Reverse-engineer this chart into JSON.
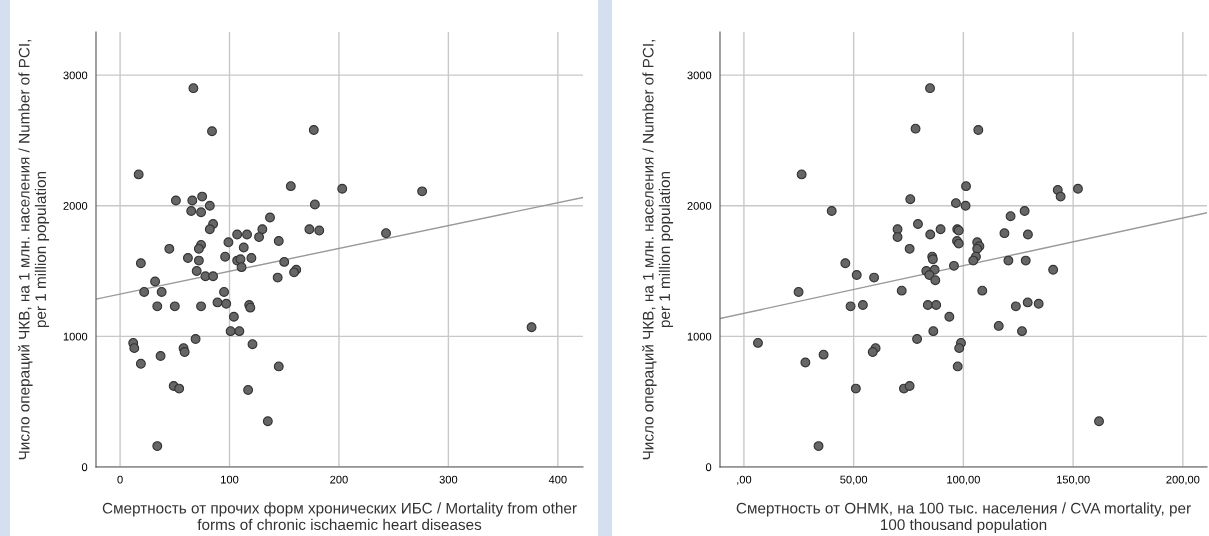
{
  "chart_data": [
    {
      "type": "scatter",
      "xlabel": "Смертность от прочих форм хронических ИБС / Mortality from other\nforms of chronic ischaemic heart diseases",
      "ylabel": "Число операций ЧКВ, на 1 млн. населения / Number of PCI,\nper 1 million population",
      "xlim": [
        -22,
        423
      ],
      "ylim": [
        0,
        3330
      ],
      "xticks": [
        0,
        100,
        200,
        300,
        400
      ],
      "yticks": [
        0,
        1000,
        2000,
        3000
      ],
      "grid": true,
      "series": [
        {
          "marker": "circle",
          "color": "#666666",
          "x": [
            67,
            84,
            17,
            177,
            156,
            203,
            51,
            66,
            75,
            65,
            74,
            82,
            178,
            137,
            85,
            82,
            173,
            182,
            130,
            127,
            107,
            116,
            145,
            99,
            113,
            74,
            72,
            45,
            62,
            72,
            96,
            107,
            110,
            120,
            111,
            150,
            161,
            159,
            19,
            70,
            78,
            85,
            144,
            32,
            22,
            38,
            95,
            34,
            50,
            74,
            89,
            97,
            118,
            119,
            104,
            101,
            109,
            69,
            12,
            13,
            121,
            37,
            58,
            59,
            19,
            145,
            49,
            54,
            117,
            135,
            34,
            276,
            243,
            376
          ],
          "values": [
            2900,
            2570,
            2240,
            2580,
            2150,
            2130,
            2040,
            2040,
            2070,
            1960,
            1950,
            2000,
            2010,
            1910,
            1860,
            1820,
            1820,
            1810,
            1820,
            1760,
            1780,
            1780,
            1730,
            1720,
            1680,
            1700,
            1670,
            1670,
            1600,
            1580,
            1610,
            1580,
            1590,
            1600,
            1530,
            1570,
            1510,
            1490,
            1560,
            1500,
            1460,
            1460,
            1450,
            1420,
            1340,
            1340,
            1340,
            1230,
            1230,
            1230,
            1260,
            1250,
            1240,
            1220,
            1150,
            1040,
            1040,
            980,
            950,
            910,
            940,
            850,
            910,
            880,
            790,
            770,
            620,
            600,
            590,
            350,
            160,
            2110,
            1790,
            1070
          ]
        },
        {
          "type": "line",
          "color": "#999999",
          "x": [
            -22,
            423
          ],
          "values": [
            1285,
            2063
          ]
        }
      ]
    },
    {
      "type": "scatter",
      "xlabel": "Смертность от ОНМК, на 100 тыс. населения / CVA mortality, per\n100 thousand population",
      "ylabel": "Число операций ЧКВ, на 1 млн. населения / Number of PCI,\nper 1 million population",
      "xlim": [
        -10.9,
        211
      ],
      "ylim": [
        0,
        3330
      ],
      "xticks": [
        {
          "value": 0,
          "label": ",00"
        },
        {
          "value": 50,
          "label": "50,00"
        },
        {
          "value": 100,
          "label": "100,00"
        },
        {
          "value": 150,
          "label": "150,00"
        },
        {
          "value": 200,
          "label": "200,00"
        }
      ],
      "yticks": [
        0,
        1000,
        2000,
        3000
      ],
      "grid": true,
      "series": [
        {
          "marker": "circle",
          "color": "#666666",
          "x": [
            84.8,
            78.2,
            26.3,
            75.8,
            40,
            79.3,
            70,
            70,
            84.9,
            89.6,
            75.5,
            85.8,
            86.1,
            46.2,
            83.1,
            86.9,
            84.5,
            87.2,
            51.4,
            59.3,
            71.9,
            24.9,
            48.6,
            54.2,
            83.8,
            87.6,
            93.6,
            86.3,
            78.9,
            6.4,
            60,
            58.7,
            36.3,
            28,
            51,
            72.9,
            75.5,
            34,
            106.8,
            101.2,
            143,
            144.3,
            152.2,
            96.6,
            101,
            127.9,
            121.5,
            97.2,
            97.9,
            118.7,
            129.4,
            97.1,
            97.9,
            106.3,
            107.3,
            106.3,
            105.7,
            104.5,
            120.5,
            128.4,
            95.7,
            140.9,
            108.6,
            129.3,
            134.3,
            123.9,
            116.1,
            126.7,
            98.9,
            98.1,
            97.4,
            161.8
          ],
          "values": [
            2900,
            2590,
            2240,
            2050,
            1960,
            1860,
            1820,
            1760,
            1780,
            1820,
            1670,
            1610,
            1590,
            1560,
            1500,
            1510,
            1470,
            1430,
            1470,
            1450,
            1350,
            1340,
            1230,
            1240,
            1240,
            1240,
            1150,
            1040,
            980,
            950,
            910,
            880,
            860,
            800,
            600,
            600,
            620,
            160,
            2580,
            2150,
            2120,
            2070,
            2130,
            2020,
            2000,
            1960,
            1920,
            1820,
            1810,
            1790,
            1780,
            1730,
            1710,
            1720,
            1690,
            1670,
            1610,
            1580,
            1580,
            1580,
            1540,
            1510,
            1350,
            1260,
            1250,
            1230,
            1080,
            1040,
            950,
            910,
            770,
            350
          ]
        },
        {
          "type": "line",
          "color": "#999999",
          "x": [
            -10.9,
            211
          ],
          "values": [
            1137,
            1946
          ]
        }
      ]
    }
  ]
}
